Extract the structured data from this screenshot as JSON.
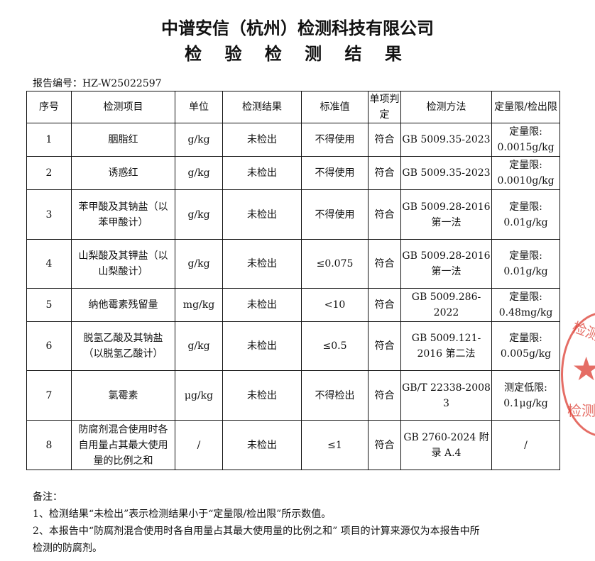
{
  "header": {
    "company": "中谱安信（杭州）检测科技有限公司",
    "title": "检 验 检 测 结 果"
  },
  "report_no": "报告编号：HZ-W25022597",
  "table": {
    "headers": [
      "序号",
      "检测项目",
      "单位",
      "检测结果",
      "标准值",
      "单项判定",
      "检测方法",
      "定量限/检出限"
    ],
    "rows": [
      [
        "1",
        "胭脂红",
        "g/kg",
        "未检出",
        "不得使用",
        "符合",
        "GB 5009.35-2023",
        "定量限: 0.0015g/kg"
      ],
      [
        "2",
        "诱惑红",
        "g/kg",
        "未检出",
        "不得使用",
        "符合",
        "GB 5009.35-2023",
        "定量限: 0.0010g/kg"
      ],
      [
        "3",
        "苯甲酸及其钠盐（以苯甲酸计）",
        "g/kg",
        "未检出",
        "不得使用",
        "符合",
        "GB 5009.28-2016 第一法",
        "定量限: 0.01g/kg"
      ],
      [
        "4",
        "山梨酸及其钾盐（以山梨酸计）",
        "g/kg",
        "未检出",
        "≤0.075",
        "符合",
        "GB 5009.28-2016 第一法",
        "定量限: 0.01g/kg"
      ],
      [
        "5",
        "纳他霉素残留量",
        "mg/kg",
        "未检出",
        "<10",
        "符合",
        "GB 5009.286-2022",
        "定量限: 0.48mg/kg"
      ],
      [
        "6",
        "脱氢乙酸及其钠盐（以脱氢乙酸计）",
        "g/kg",
        "未检出",
        "≤0.5",
        "符合",
        "GB 5009.121-2016 第二法",
        "定量限: 0.005g/kg"
      ],
      [
        "7",
        "氯霉素",
        "μg/kg",
        "未检出",
        "不得检出",
        "符合",
        "GB/T 22338-2008 3",
        "测定低限: 0.1μg/kg"
      ],
      [
        "8",
        "防腐剂混合使用时各自用量占其最大使用量的比例之和",
        "/",
        "未检出",
        "≤1",
        "符合",
        "GB 2760-2024 附录 A.4",
        "/"
      ]
    ]
  },
  "notes": {
    "label": "备注：",
    "n1": "1、检测结果“未检出”表示检测结果小于“定量限/检出限”所示数值。",
    "n2": "2、本报告中“防腐剂混合使用时各自用量占其最大使用量的比例之和” 项目的计算来源仅为本报告中所",
    "n3": "检测的防腐剂。"
  },
  "stamp": {
    "text1": "检测科技",
    "text2": "检测专用"
  },
  "colors": {
    "stamp": "#dc3c32"
  }
}
